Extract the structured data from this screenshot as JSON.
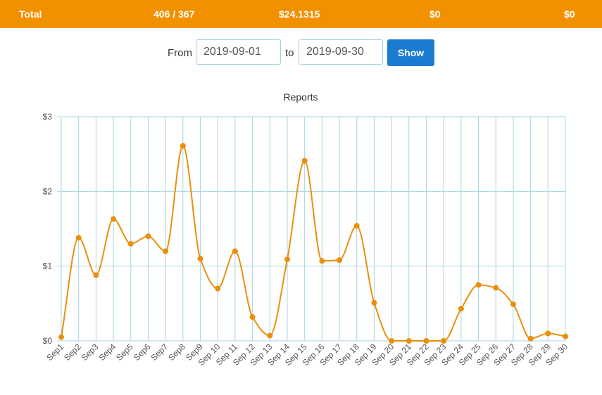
{
  "totals": {
    "label": "Total",
    "count": "406 / 367",
    "amount": "$24.1315",
    "col3": "$0",
    "col4": "$0"
  },
  "filter": {
    "from_label": "From",
    "from_value": "2019-09-01",
    "to_label": "to",
    "to_value": "2019-09-30",
    "show_label": "Show"
  },
  "colors": {
    "accent": "#f29100",
    "button": "#1a7bd1",
    "line": "#e8900c",
    "grid": "#a6d4e4"
  },
  "chart_data": {
    "type": "line",
    "title": "Reports",
    "curve": "smooth",
    "grid": true,
    "ylim": [
      0,
      3
    ],
    "y_ticks": [
      0,
      1,
      2,
      3
    ],
    "y_tick_labels": [
      "$0",
      "$1",
      "$2",
      "$3"
    ],
    "categories": [
      "Sep1",
      "Sep2",
      "Sep3",
      "Sep4",
      "Sep5",
      "Sep6",
      "Sep7",
      "Sep8",
      "Sep9",
      "Sep 10",
      "Sep 11",
      "Sep 12",
      "Sep 13",
      "Sep 14",
      "Sep 15",
      "Sep 16",
      "Sep 17",
      "Sep 18",
      "Sep 19",
      "Sep 20",
      "Sep 21",
      "Sep 22",
      "Sep 23",
      "Sep 24",
      "Sep 25",
      "Sep 26",
      "Sep 27",
      "Sep 28",
      "Sep 29",
      "Sep 30"
    ],
    "values": [
      0.05,
      1.38,
      0.88,
      1.63,
      1.3,
      1.4,
      1.2,
      2.61,
      1.1,
      0.7,
      1.2,
      0.32,
      0.07,
      1.09,
      2.41,
      1.07,
      1.08,
      1.54,
      0.51,
      0.0,
      0.0,
      0.0,
      0.0,
      0.43,
      0.75,
      0.71,
      0.49,
      0.03,
      0.1,
      0.06
    ]
  }
}
